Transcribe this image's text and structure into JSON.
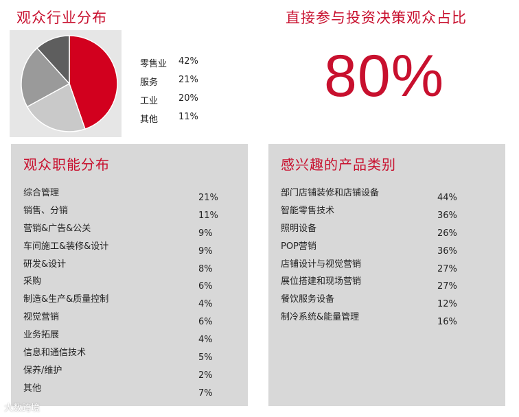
{
  "industry": {
    "title": "观众行业分布"
  },
  "decision": {
    "title": "直接参与投资决策观众占比",
    "value": "80%"
  },
  "function_panel": {
    "title": "观众职能分布"
  },
  "product_panel": {
    "title": "感兴趣的产品类别"
  },
  "watermark": "大数跨境",
  "chart_data": [
    {
      "type": "pie",
      "title": "观众行业分布",
      "labels": [
        "零售业",
        "服务",
        "工业",
        "其他"
      ],
      "values": [
        42,
        21,
        20,
        11
      ],
      "value_labels": [
        "42%",
        "21%",
        "20%",
        "11%"
      ],
      "colors": [
        "#d2001e",
        "#c9c9c9",
        "#9a9a9a",
        "#5e5e5e"
      ],
      "legend": "right"
    },
    {
      "type": "table",
      "title": "观众职能分布",
      "rows": [
        {
          "label": "综合管理",
          "value": "21%"
        },
        {
          "label": "销售、分销",
          "value": "11%"
        },
        {
          "label": "营销&广告&公关",
          "value": "9%"
        },
        {
          "label": "车间施工&装修&设计",
          "value": "9%"
        },
        {
          "label": "研发&设计",
          "value": "8%"
        },
        {
          "label": "采购",
          "value": "6%"
        },
        {
          "label": "制造&生产&质量控制",
          "value": "4%"
        },
        {
          "label": "视觉营销",
          "value": "6%"
        },
        {
          "label": "业务拓展",
          "value": "4%"
        },
        {
          "label": "信息和通信技术",
          "value": "5%"
        },
        {
          "label": "保养/维护",
          "value": "2%"
        },
        {
          "label": "其他",
          "value": "7%"
        }
      ]
    },
    {
      "type": "table",
      "title": "感兴趣的产品类别",
      "rows": [
        {
          "label": "部门店铺装修和店铺设备",
          "value": "44%"
        },
        {
          "label": "智能零售技术",
          "value": "36%"
        },
        {
          "label": "照明设备",
          "value": "26%"
        },
        {
          "label": "POP营销",
          "value": "36%"
        },
        {
          "label": "店铺设计与视觉营销",
          "value": "27%"
        },
        {
          "label": "展位搭建和现场营销",
          "value": "27%"
        },
        {
          "label": "餐饮服务设备",
          "value": "12%"
        },
        {
          "label": "制冷系统&能量管理",
          "value": "16%"
        }
      ]
    }
  ]
}
